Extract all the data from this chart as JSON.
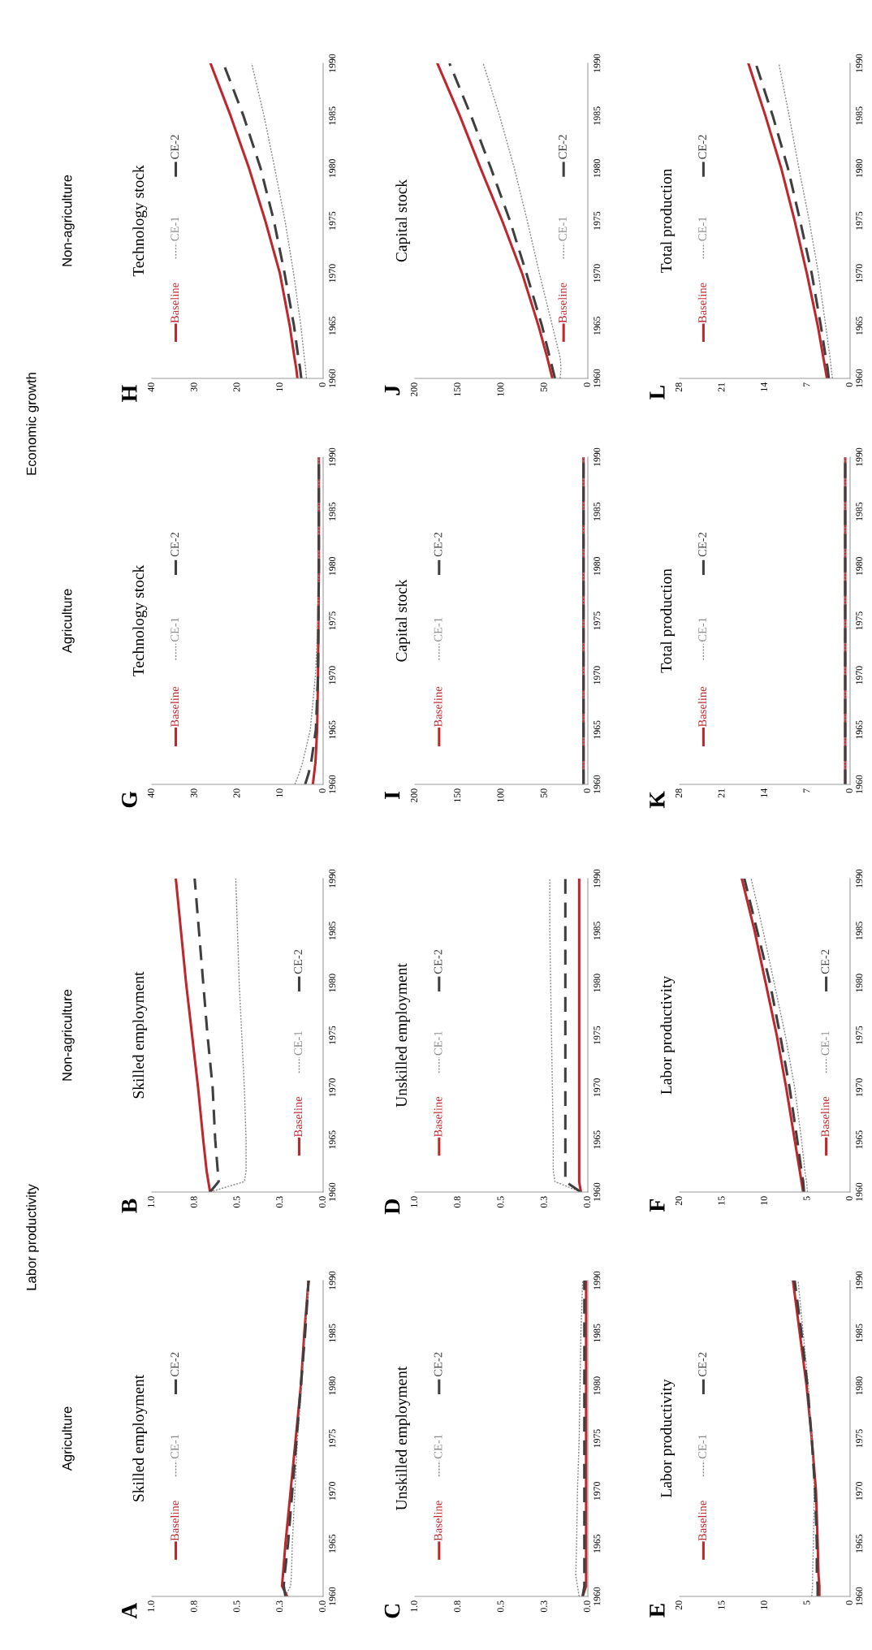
{
  "chart_data": [
    {
      "type": "line",
      "title": "Skilled employment",
      "annotations": [
        "A",
        "Agriculture",
        "Labor productivity"
      ],
      "legend": "left",
      "xlim": [
        1,
        0
      ],
      "xticks": [
        {
          "value": 0,
          "label": "0.0"
        },
        {
          "value": 0.25,
          "label": "0.3"
        },
        {
          "value": 0.5,
          "label": "0.5"
        },
        {
          "value": 0.75,
          "label": "0.8"
        },
        {
          "value": 1,
          "label": "1.0"
        }
      ],
      "ylim": [
        1960,
        1990
      ],
      "yticks": [
        1960,
        1965,
        1970,
        1975,
        1980,
        1985,
        1990
      ],
      "series": [
        {
          "name": "Baseline",
          "color": "#c0272d",
          "line_style": "solid",
          "x": [
            0.21,
            0.24,
            0.235,
            0.22,
            0.19,
            0.16,
            0.13,
            0.11,
            0.085
          ],
          "values": [
            1960,
            1961,
            1962,
            1965,
            1970,
            1975,
            1980,
            1985,
            1990
          ]
        },
        {
          "name": "CE-1",
          "color": "#8a8a8a",
          "line_style": "dotted",
          "x": [
            0.22,
            0.19,
            0.185,
            0.18,
            0.165,
            0.15,
            0.125,
            0.105,
            0.085
          ],
          "values": [
            1960,
            1961,
            1962,
            1965,
            1970,
            1975,
            1980,
            1985,
            1990
          ]
        },
        {
          "name": "CE-2",
          "color": "#3f3f3f",
          "line_style": "dashed",
          "x": [
            0.22,
            0.23,
            0.225,
            0.205,
            0.18,
            0.155,
            0.13,
            0.105,
            0.085
          ],
          "values": [
            1960,
            1961,
            1962,
            1965,
            1970,
            1975,
            1980,
            1985,
            1990
          ]
        }
      ]
    },
    {
      "type": "line",
      "title": "Skilled employment",
      "annotations": [
        "B",
        "Non-agriculture"
      ],
      "legend": "right",
      "xlim": [
        1,
        0
      ],
      "xticks": [
        {
          "value": 0,
          "label": "0.0"
        },
        {
          "value": 0.25,
          "label": "0.3"
        },
        {
          "value": 0.5,
          "label": "0.5"
        },
        {
          "value": 0.75,
          "label": "0.8"
        },
        {
          "value": 1,
          "label": "1.0"
        }
      ],
      "ylim": [
        1960,
        1990
      ],
      "yticks": [
        1960,
        1965,
        1970,
        1975,
        1980,
        1985,
        1990
      ],
      "series": [
        {
          "name": "Baseline",
          "color": "#c0272d",
          "line_style": "solid",
          "x": [
            0.66,
            0.67,
            0.68,
            0.7,
            0.73,
            0.765,
            0.8,
            0.83,
            0.86
          ],
          "values": [
            1960,
            1961,
            1962,
            1965,
            1970,
            1975,
            1980,
            1985,
            1990
          ]
        },
        {
          "name": "CE-1",
          "color": "#8a8a8a",
          "line_style": "dotted",
          "x": [
            0.66,
            0.46,
            0.45,
            0.45,
            0.46,
            0.475,
            0.49,
            0.5,
            0.51
          ],
          "values": [
            1960,
            1961,
            1962,
            1965,
            1970,
            1975,
            1980,
            1985,
            1990
          ]
        },
        {
          "name": "CE-2",
          "color": "#3f3f3f",
          "line_style": "dashed",
          "x": [
            0.66,
            0.61,
            0.615,
            0.63,
            0.645,
            0.675,
            0.7,
            0.725,
            0.75
          ],
          "values": [
            1960,
            1961,
            1962,
            1965,
            1970,
            1975,
            1980,
            1985,
            1990
          ]
        }
      ]
    },
    {
      "type": "line",
      "title": "Unskilled employment",
      "annotations": [
        "C"
      ],
      "legend": "left",
      "xlim": [
        1,
        0
      ],
      "xticks": [
        {
          "value": 0,
          "label": "0.0"
        },
        {
          "value": 0.25,
          "label": "0.3"
        },
        {
          "value": 0.5,
          "label": "0.5"
        },
        {
          "value": 0.75,
          "label": "0.8"
        },
        {
          "value": 1,
          "label": "1.0"
        }
      ],
      "ylim": [
        1960,
        1990
      ],
      "yticks": [
        1960,
        1965,
        1970,
        1975,
        1980,
        1985,
        1990
      ],
      "series": [
        {
          "name": "Baseline",
          "color": "#c0272d",
          "line_style": "solid",
          "x": [
            0.03,
            0.01,
            0.01,
            0.01,
            0.01,
            0.01,
            0.01,
            0.01,
            0.01
          ],
          "values": [
            1960,
            1961,
            1962,
            1965,
            1970,
            1975,
            1980,
            1985,
            1990
          ]
        },
        {
          "name": "CE-1",
          "color": "#8a8a8a",
          "line_style": "dotted",
          "x": [
            0.05,
            0.06,
            0.07,
            0.065,
            0.06,
            0.05,
            0.045,
            0.04,
            0.03
          ],
          "values": [
            1960,
            1961,
            1962,
            1965,
            1970,
            1975,
            1980,
            1985,
            1990
          ]
        },
        {
          "name": "CE-2",
          "color": "#3f3f3f",
          "line_style": "dashed",
          "x": [
            0.03,
            0.02,
            0.02,
            0.02,
            0.02,
            0.02,
            0.02,
            0.02,
            0.02
          ],
          "values": [
            1960,
            1961,
            1962,
            1965,
            1970,
            1975,
            1980,
            1985,
            1990
          ]
        }
      ]
    },
    {
      "type": "line",
      "title": "Unskilled employment",
      "annotations": [
        "D"
      ],
      "legend": "left",
      "xlim": [
        1,
        0
      ],
      "xticks": [
        {
          "value": 0,
          "label": "0.0"
        },
        {
          "value": 0.25,
          "label": "0.3"
        },
        {
          "value": 0.5,
          "label": "0.5"
        },
        {
          "value": 0.75,
          "label": "0.8"
        },
        {
          "value": 1,
          "label": "1.0"
        }
      ],
      "ylim": [
        1960,
        1990
      ],
      "yticks": [
        1960,
        1965,
        1970,
        1975,
        1980,
        1985,
        1990
      ],
      "series": [
        {
          "name": "Baseline",
          "color": "#c0272d",
          "line_style": "solid",
          "x": [
            0.04,
            0.05,
            0.05,
            0.05,
            0.05,
            0.05,
            0.05,
            0.05,
            0.05
          ],
          "values": [
            1960,
            1961,
            1962,
            1965,
            1970,
            1975,
            1980,
            1985,
            1990
          ]
        },
        {
          "name": "CE-1",
          "color": "#8a8a8a",
          "line_style": "dotted",
          "x": [
            0.04,
            0.19,
            0.2,
            0.2,
            0.205,
            0.21,
            0.215,
            0.22,
            0.22
          ],
          "values": [
            1960,
            1961,
            1962,
            1965,
            1970,
            1975,
            1980,
            1985,
            1990
          ]
        },
        {
          "name": "CE-2",
          "color": "#3f3f3f",
          "line_style": "dashed",
          "x": [
            0.04,
            0.13,
            0.13,
            0.13,
            0.13,
            0.13,
            0.13,
            0.13,
            0.13
          ],
          "values": [
            1960,
            1961,
            1962,
            1965,
            1970,
            1975,
            1980,
            1985,
            1990
          ]
        }
      ]
    },
    {
      "type": "line",
      "title": "Labor productivity",
      "annotations": [
        "E"
      ],
      "legend": "left",
      "xlim": [
        20,
        0
      ],
      "xticks": [
        0,
        5,
        10,
        15,
        20
      ],
      "ylim": [
        1960,
        1990
      ],
      "yticks": [
        1960,
        1965,
        1970,
        1975,
        1980,
        1985,
        1990
      ],
      "series": [
        {
          "name": "Baseline",
          "color": "#c0272d",
          "line_style": "solid",
          "x": [
            3.6,
            3.6,
            3.7,
            3.8,
            4.0,
            4.5,
            5.1,
            5.9,
            6.7
          ],
          "values": [
            1960,
            1961,
            1962,
            1965,
            1970,
            1975,
            1980,
            1985,
            1990
          ]
        },
        {
          "name": "CE-1",
          "color": "#8a8a8a",
          "line_style": "dotted",
          "x": [
            4.5,
            4.4,
            4.4,
            4.3,
            4.2,
            4.5,
            4.9,
            5.5,
            6.1
          ],
          "values": [
            1960,
            1961,
            1962,
            1965,
            1970,
            1975,
            1980,
            1985,
            1990
          ]
        },
        {
          "name": "CE-2",
          "color": "#3f3f3f",
          "line_style": "dashed",
          "x": [
            3.8,
            3.8,
            3.9,
            3.9,
            4.1,
            4.5,
            5.0,
            5.7,
            6.5
          ],
          "values": [
            1960,
            1961,
            1962,
            1965,
            1970,
            1975,
            1980,
            1985,
            1990
          ]
        }
      ]
    },
    {
      "type": "line",
      "title": "Labor productivity",
      "annotations": [
        "F"
      ],
      "legend": "right",
      "xlim": [
        20,
        0
      ],
      "xticks": [
        0,
        5,
        10,
        15,
        20
      ],
      "ylim": [
        1960,
        1990
      ],
      "yticks": [
        1960,
        1965,
        1970,
        1975,
        1980,
        1985,
        1990
      ],
      "series": [
        {
          "name": "Baseline",
          "color": "#c0272d",
          "line_style": "solid",
          "x": [
            5.5,
            5.7,
            5.9,
            6.5,
            7.5,
            8.6,
            9.9,
            11.2,
            12.7
          ],
          "values": [
            1960,
            1961,
            1962,
            1965,
            1970,
            1975,
            1980,
            1985,
            1990
          ]
        },
        {
          "name": "CE-1",
          "color": "#8a8a8a",
          "line_style": "dotted",
          "x": [
            5.0,
            5.1,
            5.3,
            5.7,
            6.5,
            7.6,
            8.9,
            10.2,
            11.6
          ],
          "values": [
            1960,
            1961,
            1962,
            1965,
            1970,
            1975,
            1980,
            1985,
            1990
          ]
        },
        {
          "name": "CE-2",
          "color": "#3f3f3f",
          "line_style": "dashed",
          "x": [
            5.4,
            5.5,
            5.7,
            6.2,
            7.1,
            8.2,
            9.4,
            10.9,
            12.4
          ],
          "values": [
            1960,
            1961,
            1962,
            1965,
            1970,
            1975,
            1980,
            1985,
            1990
          ]
        }
      ]
    },
    {
      "type": "line",
      "title": "Technology stock",
      "annotations": [
        "G",
        "Agriculture",
        "Economic growth"
      ],
      "legend": "left",
      "xlim": [
        40,
        0
      ],
      "xticks": [
        0,
        10,
        20,
        30,
        40
      ],
      "ylim": [
        1960,
        1990
      ],
      "yticks": [
        1960,
        1965,
        1970,
        1975,
        1980,
        1985,
        1990
      ],
      "series": [
        {
          "name": "Baseline",
          "color": "#c0272d",
          "line_style": "solid",
          "x": [
            2.4,
            2.1,
            1.8,
            1.4,
            1.2,
            1.1,
            1.0,
            1.0,
            1.0
          ],
          "values": [
            1960,
            1961,
            1962,
            1965,
            1970,
            1975,
            1980,
            1985,
            1990
          ]
        },
        {
          "name": "CE-1",
          "color": "#8a8a8a",
          "line_style": "dotted",
          "x": [
            6.6,
            5.6,
            4.8,
            3.0,
            1.8,
            1.2,
            1.0,
            1.0,
            1.0
          ],
          "values": [
            1960,
            1961,
            1962,
            1965,
            1970,
            1975,
            1980,
            1985,
            1990
          ]
        },
        {
          "name": "CE-2",
          "color": "#3f3f3f",
          "line_style": "dashed",
          "x": [
            4.2,
            3.4,
            2.8,
            1.7,
            1.2,
            1.1,
            1.0,
            1.0,
            1.0
          ],
          "values": [
            1960,
            1961,
            1962,
            1965,
            1970,
            1975,
            1980,
            1985,
            1990
          ]
        }
      ]
    },
    {
      "type": "line",
      "title": "Technology stock",
      "annotations": [
        "H",
        "Non-agriculture"
      ],
      "legend": "left",
      "xlim": [
        40,
        0
      ],
      "xticks": [
        0,
        10,
        20,
        30,
        40
      ],
      "ylim": [
        1960,
        1990
      ],
      "yticks": [
        1960,
        1965,
        1970,
        1975,
        1980,
        1985,
        1990
      ],
      "series": [
        {
          "name": "Baseline",
          "color": "#c0272d",
          "line_style": "solid",
          "x": [
            6.0,
            6.3,
            6.7,
            7.8,
            10.1,
            13.5,
            17.3,
            21.6,
            26.3
          ],
          "values": [
            1960,
            1961,
            1962,
            1965,
            1970,
            1975,
            1980,
            1985,
            1990
          ]
        },
        {
          "name": "CE-1",
          "color": "#8a8a8a",
          "line_style": "dotted",
          "x": [
            3.9,
            4.1,
            4.4,
            5.2,
            6.9,
            8.9,
            11.3,
            13.8,
            16.7
          ],
          "values": [
            1960,
            1961,
            1962,
            1965,
            1970,
            1975,
            1980,
            1985,
            1990
          ]
        },
        {
          "name": "CE-2",
          "color": "#3f3f3f",
          "line_style": "dashed",
          "x": [
            5.1,
            5.4,
            5.8,
            6.8,
            9.0,
            11.5,
            14.6,
            18.6,
            23.3
          ],
          "values": [
            1960,
            1961,
            1962,
            1965,
            1970,
            1975,
            1980,
            1985,
            1990
          ]
        }
      ]
    },
    {
      "type": "line",
      "title": "Capital stock",
      "annotations": [
        "I"
      ],
      "legend": "left",
      "xlim": [
        200,
        0
      ],
      "xticks": [
        0,
        50,
        100,
        150,
        200
      ],
      "ylim": [
        1960,
        1990
      ],
      "yticks": [
        1960,
        1965,
        1970,
        1975,
        1980,
        1985,
        1990
      ],
      "series": [
        {
          "name": "Baseline",
          "color": "#c0272d",
          "line_style": "solid",
          "x": [
            5,
            5,
            5,
            5,
            5,
            5,
            5
          ],
          "values": [
            1960,
            1965,
            1970,
            1975,
            1980,
            1985,
            1990
          ]
        },
        {
          "name": "CE-1",
          "color": "#8a8a8a",
          "line_style": "dotted",
          "x": [
            5,
            5,
            5,
            5,
            5,
            5,
            5
          ],
          "values": [
            1960,
            1965,
            1970,
            1975,
            1980,
            1985,
            1990
          ]
        },
        {
          "name": "CE-2",
          "color": "#3f3f3f",
          "line_style": "dashed",
          "x": [
            5,
            5,
            5,
            5,
            5,
            5,
            5
          ],
          "values": [
            1960,
            1965,
            1970,
            1975,
            1980,
            1985,
            1990
          ]
        }
      ]
    },
    {
      "type": "line",
      "title": "Capital stock",
      "annotations": [
        "J"
      ],
      "legend": "right",
      "xlim": [
        200,
        0
      ],
      "xticks": [
        0,
        50,
        100,
        150,
        200
      ],
      "ylim": [
        1960,
        1990
      ],
      "yticks": [
        1960,
        1965,
        1970,
        1975,
        1980,
        1985,
        1990
      ],
      "series": [
        {
          "name": "Baseline",
          "color": "#c0272d",
          "line_style": "solid",
          "x": [
            41,
            44,
            47,
            57,
            76,
            99,
            124,
            148,
            174
          ],
          "values": [
            1960,
            1961,
            1962,
            1965,
            1970,
            1975,
            1980,
            1985,
            1990
          ]
        },
        {
          "name": "CE-1",
          "color": "#8a8a8a",
          "line_style": "dotted",
          "x": [
            32,
            31,
            32,
            41,
            56,
            70,
            85,
            102,
            121
          ],
          "values": [
            1960,
            1961,
            1962,
            1965,
            1970,
            1975,
            1980,
            1985,
            1990
          ]
        },
        {
          "name": "CE-2",
          "color": "#3f3f3f",
          "line_style": "dashed",
          "x": [
            38,
            41,
            44,
            53,
            71,
            90,
            112,
            135,
            160
          ],
          "values": [
            1960,
            1961,
            1962,
            1965,
            1970,
            1975,
            1980,
            1985,
            1990
          ]
        }
      ]
    },
    {
      "type": "line",
      "title": "Total production",
      "annotations": [
        "K"
      ],
      "legend": "left",
      "xlim": [
        28,
        0
      ],
      "xticks": [
        0,
        7,
        14,
        21,
        28
      ],
      "ylim": [
        1960,
        1990
      ],
      "yticks": [
        1960,
        1965,
        1970,
        1975,
        1980,
        1985,
        1990
      ],
      "series": [
        {
          "name": "Baseline",
          "color": "#c0272d",
          "line_style": "solid",
          "x": [
            0.8,
            0.8,
            0.8,
            0.8,
            0.8,
            0.8,
            0.8
          ],
          "values": [
            1960,
            1965,
            1970,
            1975,
            1980,
            1985,
            1990
          ]
        },
        {
          "name": "CE-1",
          "color": "#8a8a8a",
          "line_style": "dotted",
          "x": [
            0.8,
            0.8,
            0.8,
            0.8,
            0.8,
            0.8,
            0.8
          ],
          "values": [
            1960,
            1965,
            1970,
            1975,
            1980,
            1985,
            1990
          ]
        },
        {
          "name": "CE-2",
          "color": "#3f3f3f",
          "line_style": "dashed",
          "x": [
            0.8,
            0.8,
            0.8,
            0.8,
            0.8,
            0.8,
            0.8
          ],
          "values": [
            1960,
            1965,
            1970,
            1975,
            1980,
            1985,
            1990
          ]
        }
      ]
    },
    {
      "type": "line",
      "title": "Total production",
      "annotations": [
        "L"
      ],
      "legend": "left",
      "xlim": [
        28,
        0
      ],
      "xticks": [
        0,
        7,
        14,
        21,
        28
      ],
      "ylim": [
        1960,
        1990
      ],
      "yticks": [
        1960,
        1965,
        1970,
        1975,
        1980,
        1985,
        1990
      ],
      "series": [
        {
          "name": "Baseline",
          "color": "#c0272d",
          "line_style": "solid",
          "x": [
            3.8,
            4.1,
            4.4,
            5.3,
            7.1,
            9.1,
            11.3,
            13.9,
            16.7
          ],
          "values": [
            1960,
            1961,
            1962,
            1965,
            1970,
            1975,
            1980,
            1985,
            1990
          ]
        },
        {
          "name": "CE-1",
          "color": "#8a8a8a",
          "line_style": "dotted",
          "x": [
            2.9,
            3.1,
            3.3,
            4.0,
            5.2,
            6.7,
            8.4,
            10.0,
            11.7
          ],
          "values": [
            1960,
            1961,
            1962,
            1965,
            1970,
            1975,
            1980,
            1985,
            1990
          ]
        },
        {
          "name": "CE-2",
          "color": "#3f3f3f",
          "line_style": "dashed",
          "x": [
            3.5,
            3.7,
            4.0,
            4.8,
            6.3,
            8.2,
            10.2,
            12.7,
            15.5
          ],
          "values": [
            1960,
            1961,
            1962,
            1965,
            1970,
            1975,
            1980,
            1985,
            1990
          ]
        }
      ]
    }
  ]
}
